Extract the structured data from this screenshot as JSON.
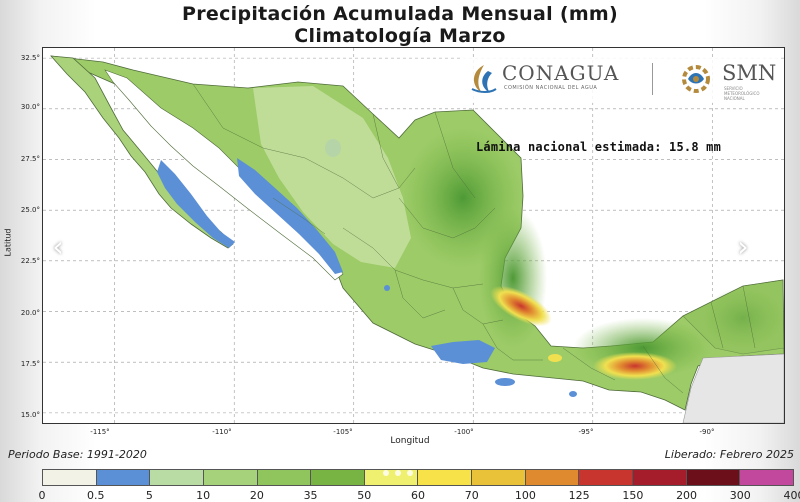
{
  "title_line1": "Precipitación Acumulada Mensual (mm)",
  "title_line2": "Climatología Marzo",
  "national_estimate": "Lámina nacional estimada: 15.8 mm",
  "footer": {
    "base_period": "Periodo Base: 1991-2020",
    "released": "Liberado: Febrero 2025"
  },
  "logos": {
    "conagua": "CONAGUA",
    "conagua_sub": "COMISIÓN NACIONAL DEL AGUA",
    "smn": "SMN",
    "smn_sub": "SERVICIO METEOROLÓGICO NACIONAL"
  },
  "map": {
    "xlabel": "Longitud",
    "ylabel": "Latitud",
    "x_ticks": [
      "-115°",
      "-110°",
      "-105°",
      "-100°",
      "-95°",
      "-90°"
    ],
    "y_ticks": [
      "32.5°",
      "30.0°",
      "27.5°",
      "25.0°",
      "22.5°",
      "20.0°",
      "17.5°",
      "15.0°"
    ],
    "lon_range": [
      -118,
      -87
    ],
    "lat_range": [
      14.5,
      33
    ],
    "grid": true
  },
  "legend": {
    "labels": [
      "0",
      "0.5",
      "5",
      "10",
      "20",
      "35",
      "50",
      "60",
      "70",
      "100",
      "125",
      "150",
      "200",
      "300",
      "400"
    ],
    "colors": [
      "#f2f2e6",
      "#5b8fd6",
      "#b9dca4",
      "#a6d27c",
      "#90c45c",
      "#78b443",
      "#f0f070",
      "#f7e24a",
      "#e9c23a",
      "#e08a30",
      "#c8352e",
      "#a51c2a",
      "#6d0f1a",
      "#c1489c"
    ]
  },
  "nav": {
    "prev": "‹",
    "next": "›"
  },
  "colors": {
    "land_base": "#9ccb67",
    "land_wet": "#6aa842",
    "land_dry": "#c5e0a0",
    "dry_blue": "#5b8fd6",
    "wet_yellow": "#f0e050",
    "wet_orange": "#e08a30",
    "wet_red": "#c8352e"
  }
}
